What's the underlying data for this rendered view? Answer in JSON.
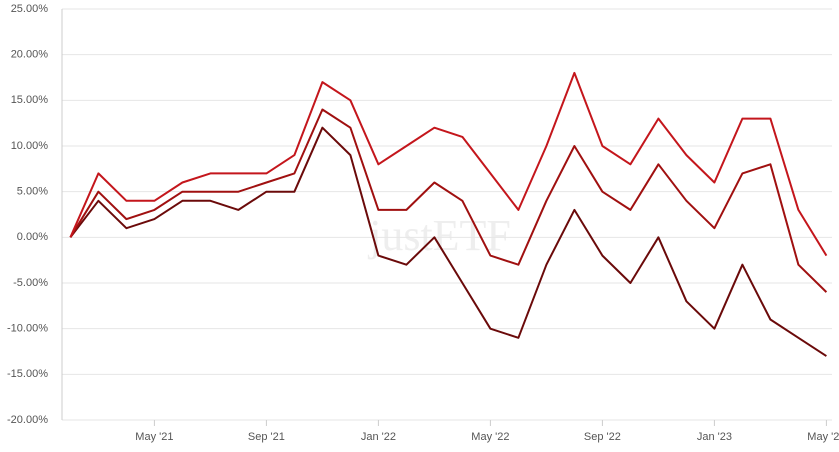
{
  "chart_data": {
    "type": "line",
    "watermark": "justETF",
    "x": [
      "2021-02",
      "2021-03",
      "2021-04",
      "2021-05",
      "2021-06",
      "2021-07",
      "2021-08",
      "2021-09",
      "2021-10",
      "2021-11",
      "2021-12",
      "2022-01",
      "2022-02",
      "2022-03",
      "2022-04",
      "2022-05",
      "2022-06",
      "2022-07",
      "2022-08",
      "2022-09",
      "2022-10",
      "2022-11",
      "2022-12",
      "2023-01",
      "2023-02",
      "2023-03",
      "2023-04",
      "2023-05"
    ],
    "xlim": [
      "2021-02",
      "2023-05"
    ],
    "xticks": [
      {
        "value": "2021-05",
        "label": "May '21"
      },
      {
        "value": "2021-09",
        "label": "Sep '21"
      },
      {
        "value": "2022-01",
        "label": "Jan '22"
      },
      {
        "value": "2022-05",
        "label": "May '22"
      },
      {
        "value": "2022-09",
        "label": "Sep '22"
      },
      {
        "value": "2023-01",
        "label": "Jan '23"
      },
      {
        "value": "2023-05",
        "label": "May '23"
      }
    ],
    "ylim": [
      -20,
      25
    ],
    "yticks": [
      {
        "value": -20,
        "label": "-20.00%"
      },
      {
        "value": -15,
        "label": "-15.00%"
      },
      {
        "value": -10,
        "label": "-10.00%"
      },
      {
        "value": -5,
        "label": "-5.00%"
      },
      {
        "value": 0,
        "label": "0.00%"
      },
      {
        "value": 5,
        "label": "5.00%"
      },
      {
        "value": 10,
        "label": "10.00%"
      },
      {
        "value": 15,
        "label": "15.00%"
      },
      {
        "value": 20,
        "label": "20.00%"
      },
      {
        "value": 25,
        "label": "25.00%"
      }
    ],
    "grid": true,
    "series": [
      {
        "color": "#c4161c",
        "values": [
          0,
          7,
          4,
          4,
          6,
          7,
          7,
          7,
          9,
          17,
          15,
          8,
          10,
          12,
          11,
          7,
          3,
          10,
          18,
          10,
          8,
          13,
          9,
          6,
          13,
          13,
          3,
          -2
        ]
      },
      {
        "color": "#a01010",
        "values": [
          0,
          5,
          2,
          3,
          5,
          5,
          5,
          6,
          7,
          14,
          12,
          3,
          3,
          6,
          4,
          -2,
          -3,
          4,
          10,
          5,
          3,
          8,
          4,
          1,
          7,
          8,
          -3,
          -6
        ]
      },
      {
        "color": "#6b0a0a",
        "values": [
          0,
          4,
          1,
          2,
          4,
          4,
          3,
          5,
          5,
          12,
          9,
          -2,
          -3,
          0,
          -5,
          -10,
          -11,
          -3,
          3,
          -2,
          -5,
          0,
          -7,
          -10,
          -3,
          -9,
          -11,
          -13
        ]
      }
    ]
  }
}
